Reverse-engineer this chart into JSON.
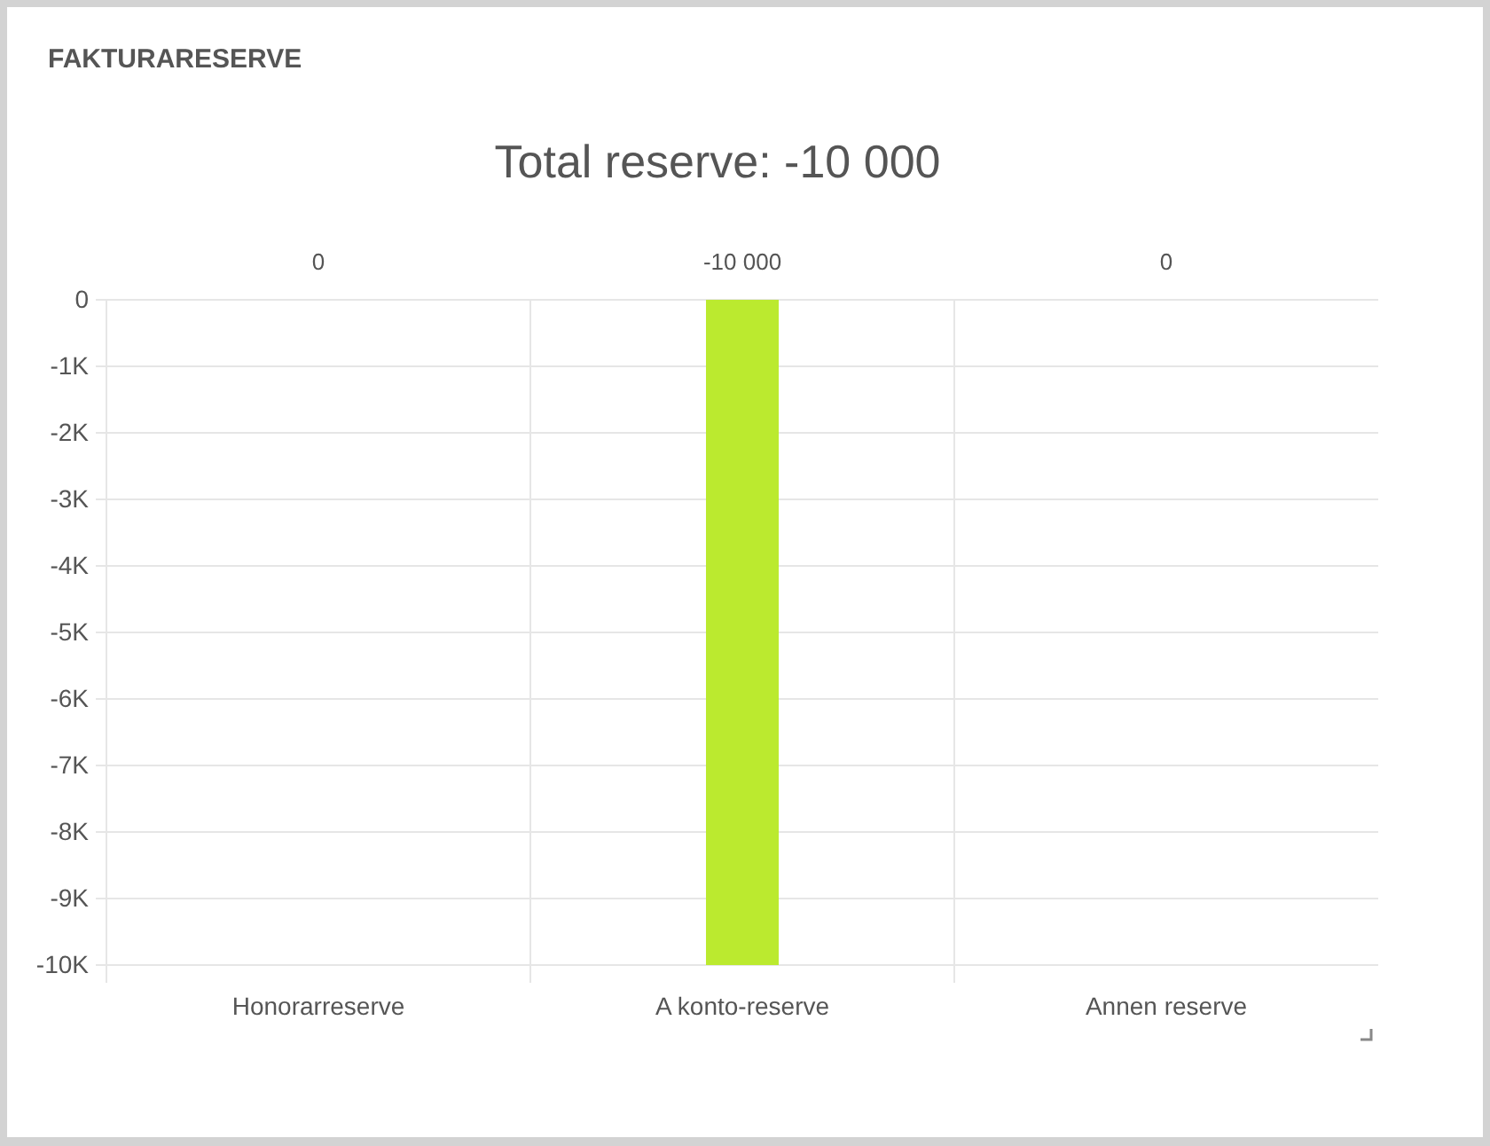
{
  "chart_data": {
    "type": "bar",
    "title": "FAKTURARESERVE",
    "subtitle": "Total reserve: -10 000",
    "categories": [
      "Honorarreserve",
      "A konto-reserve",
      "Annen reserve"
    ],
    "values": [
      0,
      -10000,
      0
    ],
    "color": "#bbea2f",
    "value_labels": [
      "0",
      "-10 000",
      "0"
    ],
    "ylim": [
      -10000,
      0
    ],
    "yticks": [
      0,
      {
        "value": -1000,
        "label": "-1K"
      },
      {
        "value": -2000,
        "label": "-2K"
      },
      {
        "value": -3000,
        "label": "-3K"
      },
      {
        "value": -4000,
        "label": "-4K"
      },
      {
        "value": -5000,
        "label": "-5K"
      },
      {
        "value": -6000,
        "label": "-6K"
      },
      {
        "value": -7000,
        "label": "-7K"
      },
      {
        "value": -8000,
        "label": "-8K"
      },
      {
        "value": -9000,
        "label": "-9K"
      },
      {
        "value": -10000,
        "label": "-10K"
      }
    ],
    "grid": true
  }
}
